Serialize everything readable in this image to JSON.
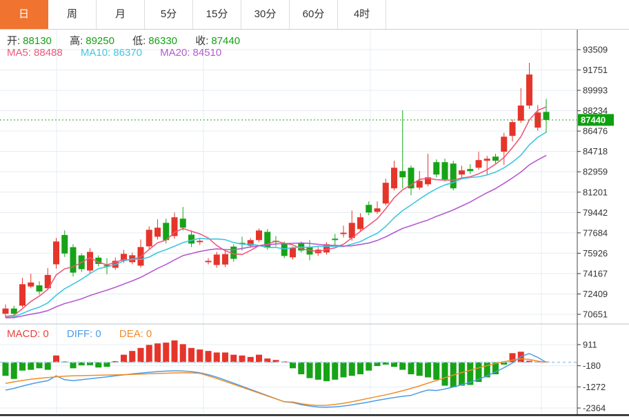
{
  "tabs": [
    {
      "label": "日",
      "active": true
    },
    {
      "label": "周",
      "active": false
    },
    {
      "label": "月",
      "active": false
    },
    {
      "label": "5分",
      "active": false
    },
    {
      "label": "15分",
      "active": false
    },
    {
      "label": "30分",
      "active": false
    },
    {
      "label": "60分",
      "active": false
    },
    {
      "label": "4时",
      "active": false
    }
  ],
  "ohlc_bar": {
    "open_label": "开:",
    "open_value": "88130",
    "high_label": "高:",
    "high_value": "89250",
    "low_label": "低:",
    "low_value": "86330",
    "close_label": "收:",
    "close_value": "87440"
  },
  "ma_bar": {
    "ma5_label": "MA5:",
    "ma5_value": "88488",
    "ma10_label": "MA10:",
    "ma10_value": "86370",
    "ma20_label": "MA20:",
    "ma20_value": "84510"
  },
  "macd_bar": {
    "macd_label": "MACD:",
    "macd_value": "0",
    "diff_label": "DIFF:",
    "diff_value": "0",
    "dea_label": "DEA:",
    "dea_value": "0"
  },
  "price_axis": {
    "labels": [
      93509,
      91751,
      89993,
      88234,
      86476,
      84718,
      82959,
      81201,
      79442,
      77684,
      75926,
      74167,
      72409,
      70651
    ],
    "current_badge": "87440"
  },
  "macd_axis": {
    "labels": [
      911,
      -180,
      -1272,
      -2364
    ]
  },
  "colors": {
    "tab_active_bg": "#f0742f",
    "up": "#e5352b",
    "down": "#17a317",
    "ma5": "#ee5877",
    "ma10": "#3ec6e0",
    "ma20": "#b55ad0",
    "grid": "#e4ecf3",
    "axis_line": "#444444",
    "axis_text": "#333333",
    "last_price_line": "#0da00d",
    "badge_bg": "#0da00d",
    "diff_line": "#4a9ce8",
    "dea_line": "#f08c28",
    "zero_dash": "#aed5ee",
    "bottom_bar": "#1a1a1a",
    "value_green": "#14a114"
  },
  "chart_data": {
    "type": "candlestick",
    "title": "",
    "last_price": 87440,
    "ma_periods": [
      5,
      10,
      20
    ],
    "ma_prehistory_close": 70300,
    "candles": [
      [
        70700,
        71500,
        70350,
        71150
      ],
      [
        71150,
        71400,
        70430,
        70700
      ],
      [
        71400,
        73800,
        71250,
        73250
      ],
      [
        73050,
        74150,
        72900,
        73400
      ],
      [
        73150,
        73500,
        72350,
        72620
      ],
      [
        72900,
        74650,
        72800,
        74050
      ],
      [
        74970,
        77250,
        74600,
        76940
      ],
      [
        77500,
        77900,
        75600,
        75900
      ],
      [
        76450,
        76700,
        73900,
        74250
      ],
      [
        75740,
        75900,
        74300,
        74550
      ],
      [
        74430,
        76350,
        74200,
        76040
      ],
      [
        75540,
        75740,
        74790,
        75000
      ],
      [
        74900,
        75500,
        74100,
        74790
      ],
      [
        74670,
        75560,
        74490,
        75270
      ],
      [
        75270,
        76220,
        75090,
        75870
      ],
      [
        75150,
        75980,
        74970,
        75750
      ],
      [
        74850,
        77120,
        74670,
        76460
      ],
      [
        76520,
        78250,
        76280,
        77950
      ],
      [
        77350,
        78850,
        77110,
        78130
      ],
      [
        78550,
        78910,
        76760,
        77060
      ],
      [
        77410,
        79440,
        77170,
        79030
      ],
      [
        78910,
        79920,
        77890,
        78130
      ],
      [
        77530,
        77890,
        76460,
        76760
      ],
      [
        76880,
        77230,
        76640,
        77000
      ],
      [
        75150,
        75500,
        74970,
        75270
      ],
      [
        74910,
        76040,
        74670,
        75810
      ],
      [
        74950,
        76100,
        74730,
        75850
      ],
      [
        76500,
        76700,
        75200,
        75440
      ],
      [
        76820,
        77350,
        76160,
        76700
      ],
      [
        76580,
        77230,
        76400,
        77060
      ],
      [
        77060,
        78070,
        76880,
        77890
      ],
      [
        77770,
        78010,
        76220,
        76400
      ],
      [
        77000,
        77410,
        76520,
        76880
      ],
      [
        76760,
        76940,
        75500,
        75690
      ],
      [
        75570,
        76520,
        75380,
        76400
      ],
      [
        76760,
        76940,
        75990,
        76160
      ],
      [
        76460,
        77060,
        75320,
        75810
      ],
      [
        75930,
        76460,
        75690,
        76230
      ],
      [
        75990,
        76880,
        75810,
        76700
      ],
      [
        77180,
        77590,
        76580,
        77060
      ],
      [
        77580,
        78310,
        77290,
        77700
      ],
      [
        77240,
        79620,
        77000,
        78550
      ],
      [
        78010,
        79380,
        77830,
        79030
      ],
      [
        80100,
        80400,
        79200,
        79440
      ],
      [
        79500,
        80400,
        79320,
        79800
      ],
      [
        80220,
        82360,
        80040,
        82010
      ],
      [
        81530,
        83910,
        81350,
        83310
      ],
      [
        83020,
        88260,
        81530,
        82480
      ],
      [
        83310,
        83500,
        80930,
        81530
      ],
      [
        81590,
        83020,
        81410,
        82180
      ],
      [
        81880,
        84510,
        81710,
        82480
      ],
      [
        83790,
        84030,
        82480,
        82720
      ],
      [
        83790,
        84100,
        82120,
        82300
      ],
      [
        83670,
        83910,
        81350,
        81530
      ],
      [
        82720,
        83490,
        82300,
        83080
      ],
      [
        83200,
        83610,
        82780,
        83020
      ],
      [
        83310,
        84690,
        83130,
        83970
      ],
      [
        83910,
        84330,
        82720,
        84090
      ],
      [
        84270,
        84510,
        83670,
        83910
      ],
      [
        84690,
        86330,
        83550,
        85990
      ],
      [
        86060,
        87490,
        85580,
        87250
      ],
      [
        87370,
        90180,
        87170,
        88680
      ],
      [
        88680,
        92380,
        88380,
        91360
      ],
      [
        86770,
        88730,
        86500,
        88080
      ],
      [
        88130,
        89250,
        86330,
        87440
      ]
    ],
    "macd": {
      "hist": [
        -700,
        -860,
        -430,
        -390,
        -310,
        -390,
        350,
        -20,
        -310,
        -155,
        -150,
        -270,
        -235,
        60,
        390,
        585,
        740,
        895,
        975,
        1015,
        1130,
        935,
        740,
        660,
        585,
        505,
        505,
        390,
        350,
        275,
        390,
        195,
        120,
        40,
        -310,
        -620,
        -820,
        -900,
        -975,
        -900,
        -780,
        -700,
        -620,
        -430,
        -195,
        -120,
        -235,
        -390,
        -620,
        -700,
        -780,
        -900,
        -1210,
        -1290,
        -1210,
        -1170,
        -1015,
        -780,
        -620,
        -120,
        470,
        545,
        80,
        0,
        0
      ],
      "diff": [
        -1440,
        -1350,
        -1230,
        -1120,
        -1030,
        -950,
        -700,
        -900,
        -950,
        -900,
        -850,
        -800,
        -750,
        -700,
        -650,
        -600,
        -555,
        -515,
        -480,
        -455,
        -440,
        -450,
        -480,
        -540,
        -640,
        -770,
        -920,
        -1080,
        -1240,
        -1400,
        -1560,
        -1720,
        -1880,
        -2040,
        -2080,
        -2190,
        -2260,
        -2310,
        -2320,
        -2300,
        -2260,
        -2200,
        -2130,
        -2050,
        -1970,
        -1890,
        -1820,
        -1760,
        -1710,
        -1560,
        -1430,
        -1460,
        -1380,
        -1280,
        -1160,
        -1030,
        -880,
        -700,
        -500,
        -280,
        -40,
        300,
        450,
        250,
        0
      ],
      "dea": [
        -1090,
        -1010,
        -940,
        -880,
        -830,
        -790,
        -750,
        -720,
        -700,
        -690,
        -680,
        -670,
        -660,
        -650,
        -640,
        -625,
        -610,
        -595,
        -580,
        -565,
        -550,
        -545,
        -550,
        -570,
        -700,
        -840,
        -990,
        -1140,
        -1290,
        -1440,
        -1590,
        -1740,
        -1890,
        -2040,
        -2050,
        -2140,
        -2200,
        -2230,
        -2220,
        -2180,
        -2120,
        -2040,
        -1950,
        -1860,
        -1770,
        -1680,
        -1580,
        -1470,
        -1350,
        -1220,
        -1080,
        -940,
        -800,
        -660,
        -530,
        -410,
        -290,
        -170,
        -60,
        30,
        110,
        180,
        150,
        60,
        0
      ]
    }
  }
}
